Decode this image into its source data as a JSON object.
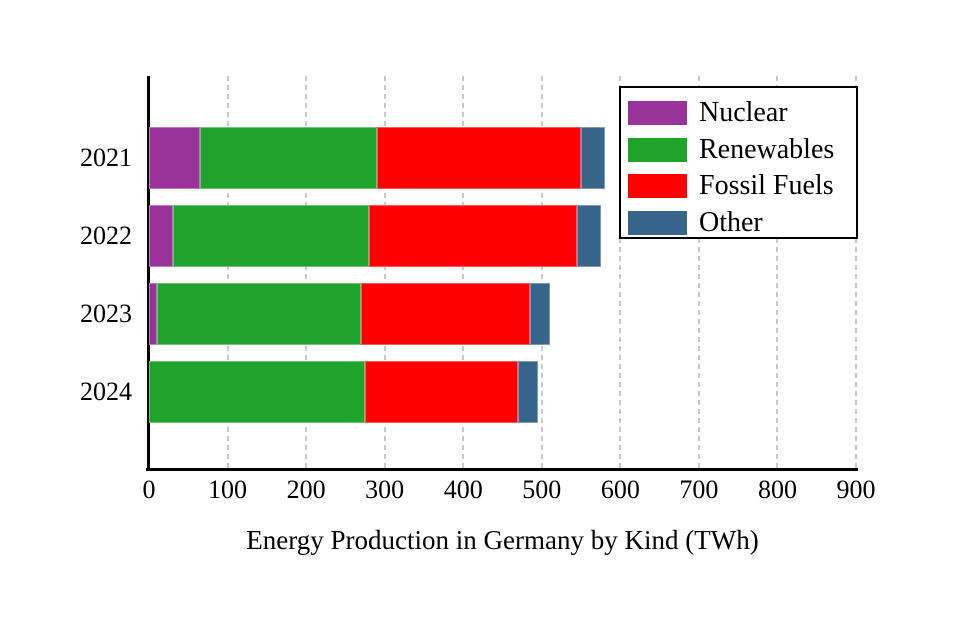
{
  "chart_data": {
    "type": "bar",
    "orientation": "horizontal",
    "stacked": true,
    "title": "Energy Production in Germany by Kind (TWh)",
    "categories": [
      "2021",
      "2022",
      "2023",
      "2024"
    ],
    "series": [
      {
        "name": "Nuclear",
        "color": "#993299",
        "values": [
          65,
          30,
          10,
          0
        ]
      },
      {
        "name": "Renewables",
        "color": "#1FA32B",
        "values": [
          225,
          250,
          260,
          275
        ]
      },
      {
        "name": "Fossil Fuels",
        "color": "#FF0000",
        "values": [
          260,
          265,
          215,
          195
        ]
      },
      {
        "name": "Other",
        "color": "#36648B",
        "values": [
          30,
          30,
          25,
          25
        ]
      }
    ],
    "totals": [
      580,
      575,
      510,
      495
    ],
    "x_ticks": [
      0,
      100,
      200,
      300,
      400,
      500,
      600,
      700,
      800,
      900
    ],
    "xlim": [
      0,
      900
    ],
    "grid": "vertical-dashed",
    "gridline_color": "#C9C9C9",
    "legend_position": "top-right",
    "legend_entries": [
      "Nuclear",
      "Renewables",
      "Fossil Fuels",
      "Other"
    ]
  }
}
